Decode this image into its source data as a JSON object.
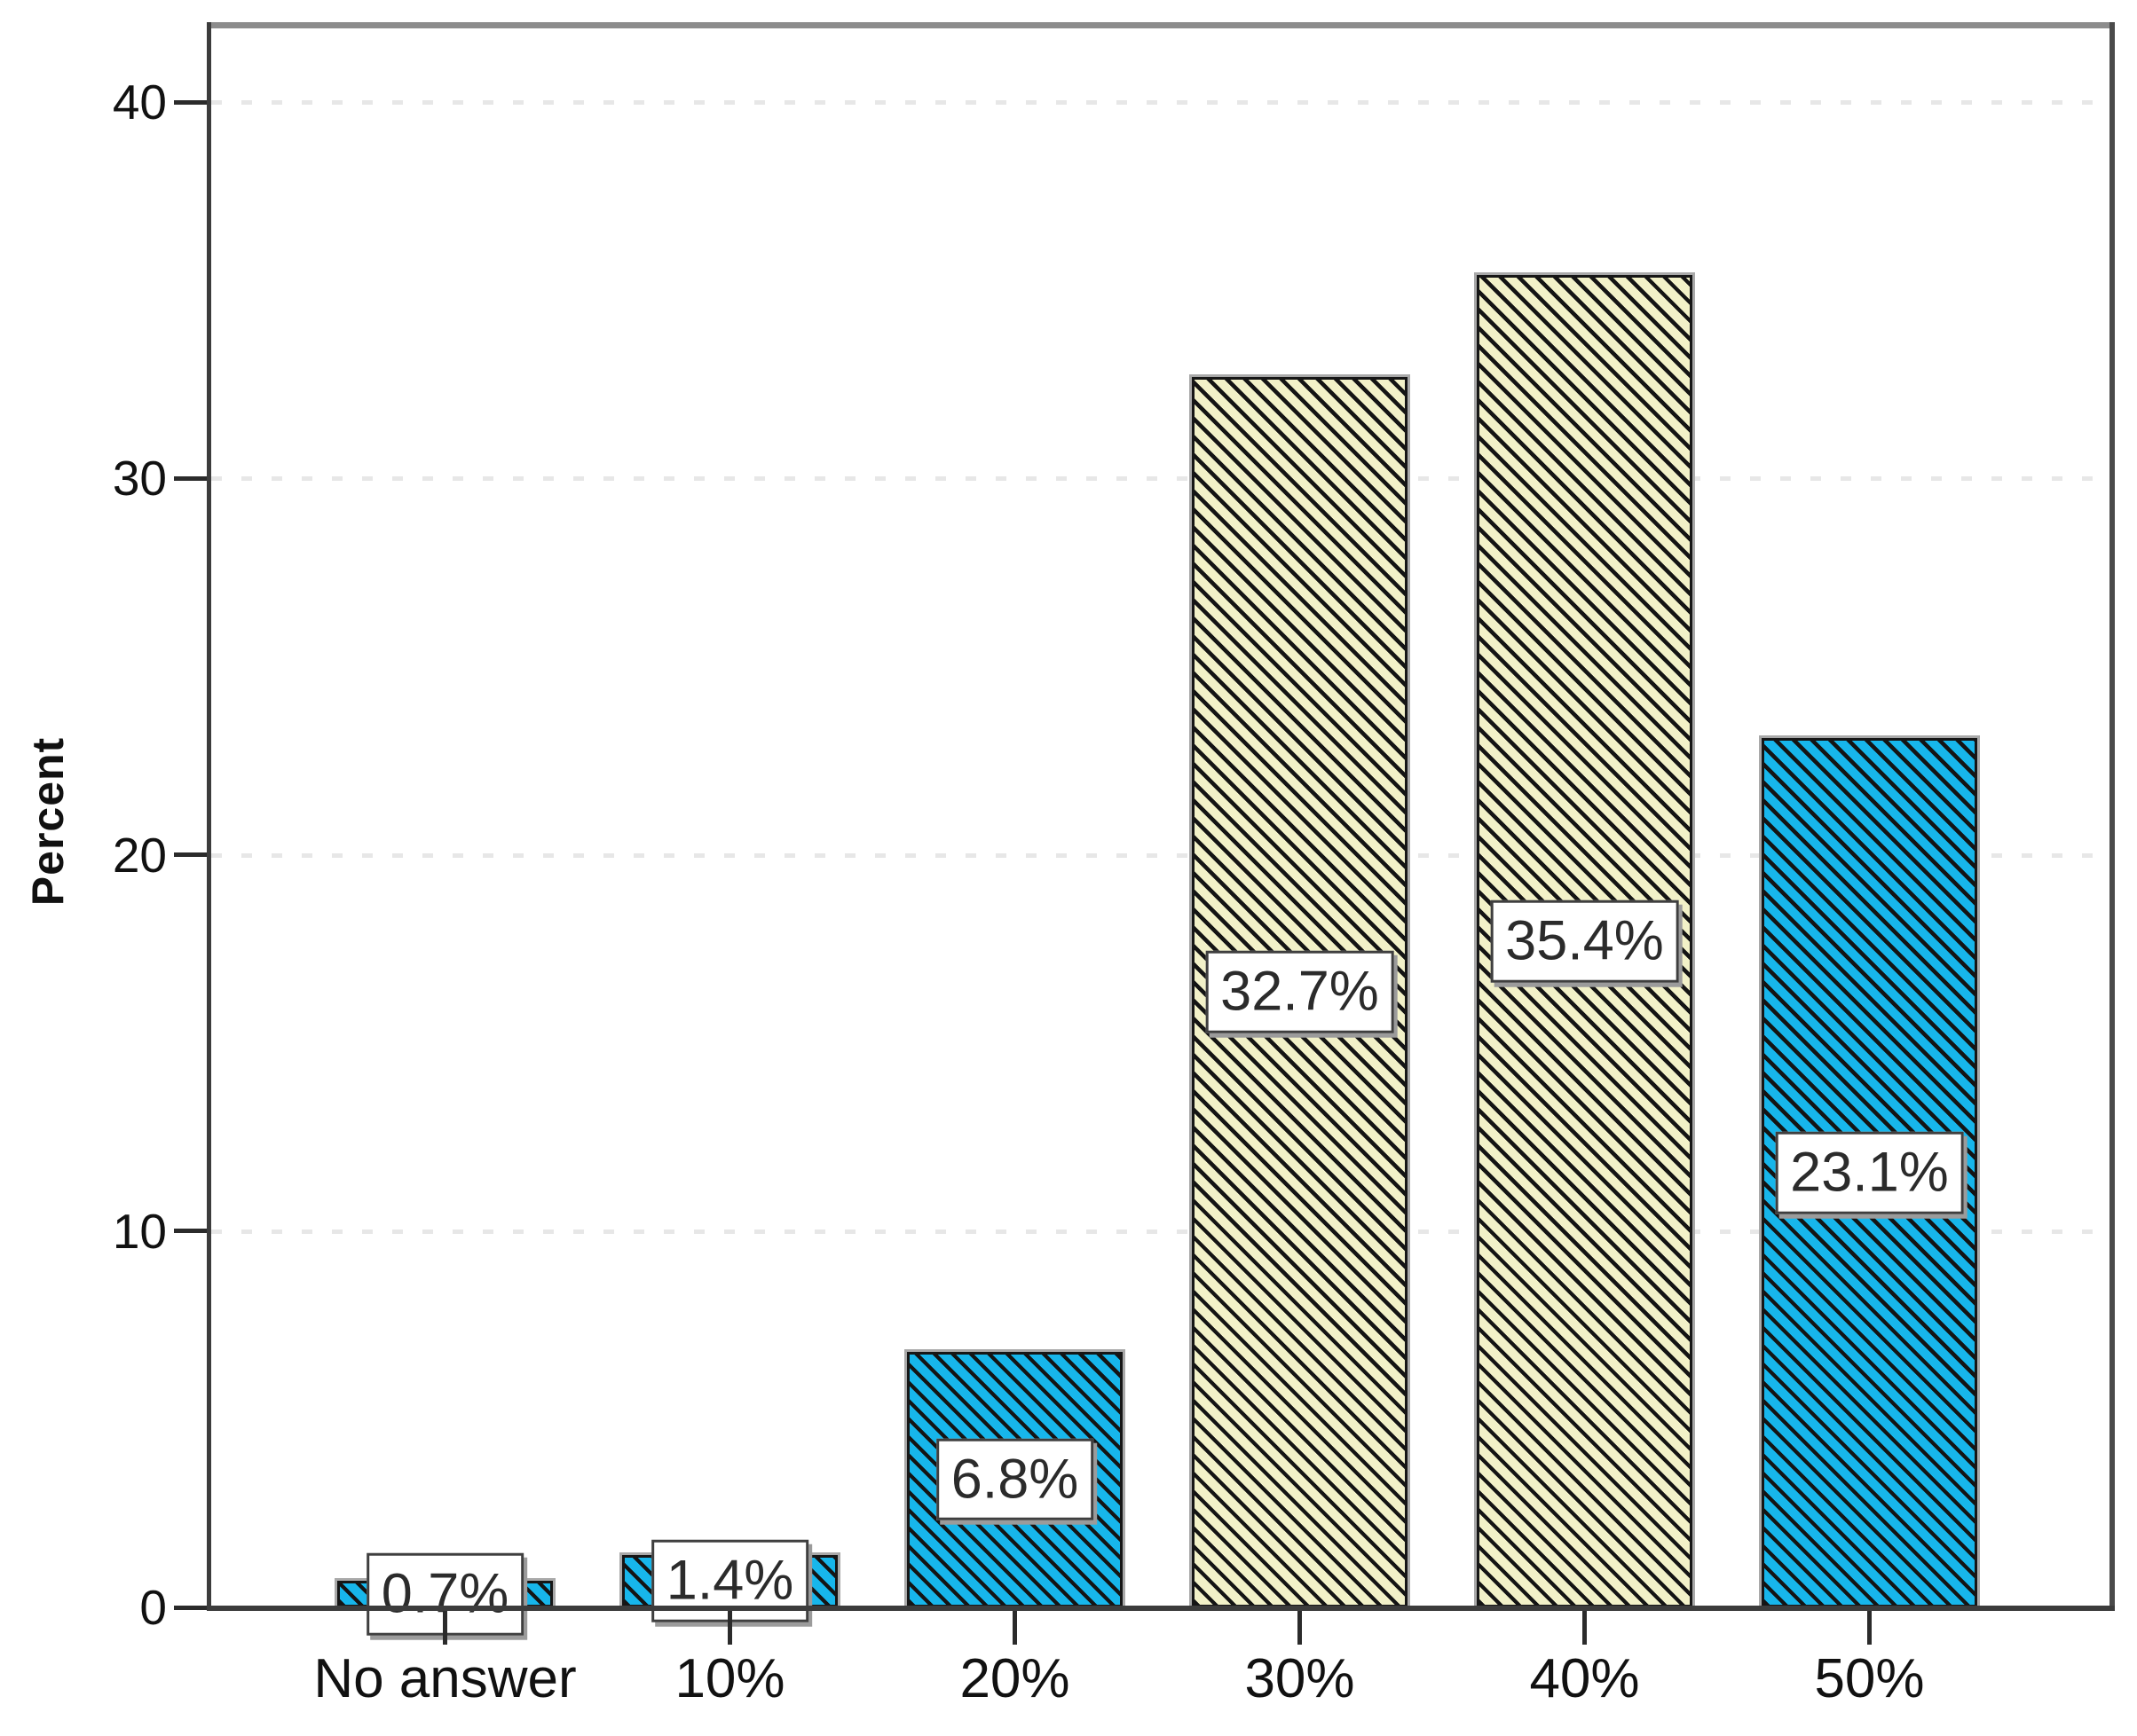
{
  "chart_data": {
    "type": "bar",
    "title": "",
    "ylabel": "Percent",
    "xlabel": "",
    "categories": [
      "No answer",
      "10%",
      "20%",
      "30%",
      "40%",
      "50%"
    ],
    "values": [
      0.7,
      1.4,
      6.8,
      32.7,
      35.4,
      23.1
    ],
    "bar_value_labels": [
      "0.7%",
      "1.4%",
      "6.8%",
      "32.7%",
      "35.4%",
      "23.1%"
    ],
    "bar_styles": [
      "blue",
      "blue",
      "blue",
      "beige",
      "beige",
      "blue"
    ],
    "y_ticks": [
      0,
      10,
      20,
      30,
      40
    ],
    "y_tick_labels": [
      "0",
      "10",
      "20",
      "30",
      "40"
    ],
    "ylim": [
      0,
      42.1
    ],
    "grid": {
      "horizontal": "dashed",
      "at": [
        10,
        20,
        30,
        40
      ]
    },
    "legend": "none",
    "hatch": "diagonal-down",
    "colors": {
      "bar_blue": "#17B6EB",
      "bar_beige": "#F2F1C8",
      "hatch": "#141414",
      "bar_border": "#161616",
      "bar_outline": "#A9A9A9",
      "grid_line": "#E7E7E7",
      "axis_line": "#3C3C3C",
      "frame_top": "#8C8C8C",
      "frame_right": "#4A4A4A",
      "tick_mark": "#2B2B2B",
      "text": "#111111",
      "value_text": "#2B2B2B",
      "label_box_bg": "#FFFFFF",
      "label_box_border": "#3F3F3F",
      "label_box_shadow": "#9B9B9B"
    }
  }
}
